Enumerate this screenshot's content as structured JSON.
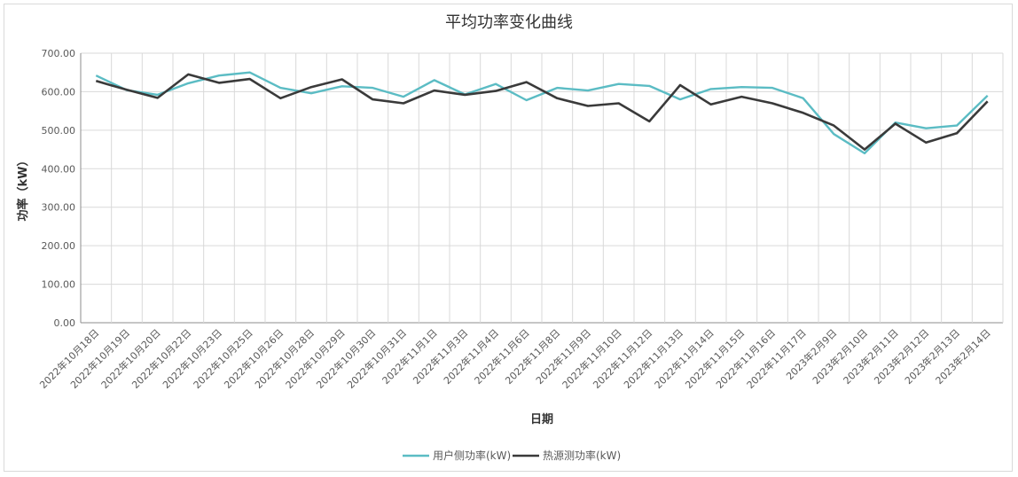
{
  "chart_data": {
    "type": "line",
    "title": "平均功率变化曲线",
    "xlabel": "日期",
    "ylabel": "功率（kW）",
    "ylim": [
      0,
      700
    ],
    "yticks": [
      "0.00",
      "100.00",
      "200.00",
      "300.00",
      "400.00",
      "500.00",
      "600.00",
      "700.00"
    ],
    "grid": true,
    "legend_position": "bottom",
    "categories": [
      "2022年10月18日",
      "2022年10月19日",
      "2022年10月20日",
      "2022年10月22日",
      "2022年10月23日",
      "2022年10月25日",
      "2022年10月26日",
      "2022年10月28日",
      "2022年10月29日",
      "2022年10月30日",
      "2022年10月31日",
      "2022年11月1日",
      "2022年11月3日",
      "2022年11月4日",
      "2022年11月6日",
      "2022年11月8日",
      "2022年11月9日",
      "2022年11月10日",
      "2022年11月12日",
      "2022年11月13日",
      "2022年11月14日",
      "2022年11月15日",
      "2022年11月16日",
      "2022年11月17日",
      "2023年2月9日",
      "2023年2月10日",
      "2023年2月11日",
      "2023年2月12日",
      "2023年2月13日",
      "2023年2月14日"
    ],
    "series": [
      {
        "name": "用户侧功率(kW)",
        "color": "#5bbcc4",
        "values": [
          642,
          604,
          592,
          622,
          642,
          650,
          610,
          596,
          614,
          610,
          587,
          630,
          593,
          620,
          578,
          610,
          603,
          620,
          615,
          580,
          607,
          612,
          610,
          583,
          490,
          440,
          520,
          505,
          512,
          590
        ]
      },
      {
        "name": "热源测功率(kW)",
        "color": "#3a3a3a",
        "values": [
          628,
          605,
          584,
          645,
          623,
          633,
          583,
          612,
          632,
          580,
          570,
          603,
          592,
          602,
          625,
          583,
          563,
          570,
          523,
          617,
          567,
          587,
          570,
          545,
          512,
          450,
          517,
          468,
          492,
          575
        ]
      }
    ]
  }
}
